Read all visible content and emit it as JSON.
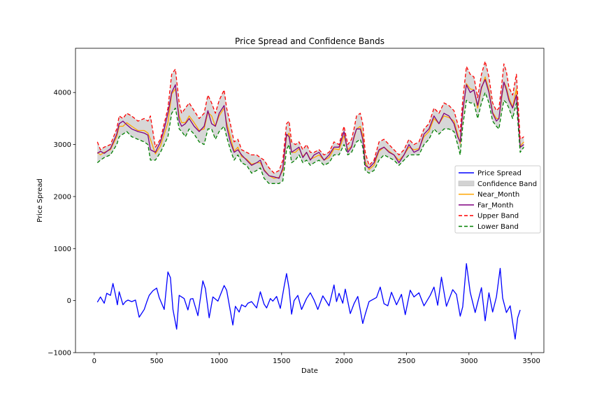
{
  "chart_data": {
    "type": "line",
    "title": "Price Spread and Confidence Bands",
    "xlabel": "Date",
    "ylabel": "Price Spread",
    "xlim": [
      -150,
      3600
    ],
    "ylim": [
      -1000,
      4850
    ],
    "x_ticks": [
      0,
      500,
      1000,
      1500,
      2000,
      2500,
      3000,
      3500
    ],
    "x_tick_labels": [
      "0",
      "500",
      "1000",
      "1500",
      "2000",
      "2500",
      "3000",
      "3500"
    ],
    "y_ticks": [
      -1000,
      0,
      1000,
      2000,
      3000,
      4000
    ],
    "y_tick_labels": [
      "−1000",
      "0",
      "1000",
      "2000",
      "3000",
      "4000"
    ],
    "grid": false,
    "legend_position": "center-right",
    "legend": [
      {
        "label": "Price Spread",
        "kind": "line",
        "color": "#0000ff"
      },
      {
        "label": "Confidence Band",
        "kind": "patch",
        "color": "#d3d3d3"
      },
      {
        "label": "Near_Month",
        "kind": "line",
        "color": "#ffa500"
      },
      {
        "label": "Far_Month",
        "kind": "line",
        "color": "#800080"
      },
      {
        "label": "Upper Band",
        "kind": "dashed",
        "color": "#ff0000"
      },
      {
        "label": "Lower Band",
        "kind": "dashed",
        "color": "#008000"
      }
    ],
    "series": [
      {
        "name": "Price Spread",
        "color": "#0000ff",
        "x": [
          25,
          50,
          80,
          100,
          130,
          150,
          170,
          185,
          200,
          230,
          250,
          270,
          300,
          330,
          360,
          400,
          420,
          440,
          470,
          500,
          520,
          560,
          590,
          610,
          630,
          660,
          680,
          720,
          750,
          770,
          790,
          830,
          870,
          890,
          920,
          950,
          990,
          1040,
          1060,
          1110,
          1130,
          1160,
          1180,
          1210,
          1230,
          1260,
          1300,
          1330,
          1360,
          1380,
          1410,
          1430,
          1460,
          1490,
          1520,
          1540,
          1560,
          1580,
          1600,
          1630,
          1660,
          1700,
          1730,
          1760,
          1790,
          1830,
          1880,
          1920,
          1940,
          1960,
          1990,
          2010,
          2050,
          2080,
          2110,
          2150,
          2170,
          2200,
          2260,
          2290,
          2320,
          2350,
          2380,
          2420,
          2460,
          2490,
          2530,
          2560,
          2600,
          2640,
          2690,
          2720,
          2750,
          2780,
          2820,
          2870,
          2900,
          2930,
          2950,
          2980,
          3010,
          3050,
          3080,
          3100,
          3130,
          3160,
          3190,
          3220,
          3250,
          3270,
          3300,
          3330,
          3370,
          3390,
          3410
        ],
        "y": [
          -30,
          70,
          -50,
          140,
          100,
          330,
          110,
          -80,
          170,
          -80,
          -20,
          10,
          -20,
          10,
          -320,
          -170,
          -30,
          100,
          190,
          240,
          60,
          -170,
          550,
          440,
          -170,
          -550,
          100,
          40,
          -180,
          30,
          40,
          -290,
          380,
          230,
          -330,
          70,
          -10,
          290,
          200,
          -470,
          -110,
          -220,
          -80,
          -120,
          -50,
          -20,
          -140,
          170,
          -70,
          -140,
          40,
          -10,
          80,
          -150,
          270,
          520,
          230,
          -260,
          0,
          100,
          -170,
          40,
          150,
          10,
          -170,
          90,
          -100,
          300,
          -20,
          140,
          -50,
          220,
          -250,
          -60,
          80,
          -440,
          -260,
          -20,
          60,
          260,
          -60,
          -100,
          160,
          -80,
          120,
          -270,
          200,
          70,
          150,
          -100,
          100,
          260,
          -90,
          450,
          -110,
          210,
          120,
          -300,
          -120,
          710,
          160,
          -230,
          60,
          250,
          -390,
          150,
          -220,
          70,
          620,
          50,
          -230,
          -100,
          -740,
          -330,
          -180
        ]
      },
      {
        "name": "Upper Band",
        "color": "#ff0000",
        "x": [
          25,
          50,
          80,
          130,
          180,
          200,
          230,
          260,
          300,
          350,
          400,
          430,
          450,
          490,
          530,
          560,
          590,
          620,
          650,
          680,
          700,
          730,
          760,
          800,
          840,
          880,
          910,
          940,
          970,
          1000,
          1040,
          1060,
          1090,
          1120,
          1150,
          1180,
          1220,
          1260,
          1300,
          1330,
          1360,
          1400,
          1440,
          1480,
          1510,
          1540,
          1560,
          1580,
          1610,
          1640,
          1670,
          1700,
          1730,
          1760,
          1800,
          1840,
          1880,
          1920,
          1960,
          2000,
          2030,
          2060,
          2080,
          2100,
          2130,
          2150,
          2170,
          2200,
          2240,
          2280,
          2320,
          2360,
          2400,
          2440,
          2480,
          2520,
          2560,
          2600,
          2640,
          2680,
          2720,
          2760,
          2800,
          2840,
          2880,
          2910,
          2930,
          2950,
          2980,
          3010,
          3040,
          3070,
          3100,
          3130,
          3160,
          3190,
          3220,
          3240,
          3260,
          3280,
          3300,
          3320,
          3350,
          3380,
          3410,
          3440
        ],
        "y": [
          3050,
          2900,
          2950,
          3000,
          3300,
          3550,
          3500,
          3600,
          3550,
          3450,
          3500,
          3450,
          3550,
          2950,
          3100,
          3400,
          3700,
          4350,
          4450,
          3800,
          3600,
          3700,
          3800,
          3650,
          3500,
          3600,
          3950,
          3800,
          3600,
          3850,
          4050,
          3700,
          3400,
          3050,
          3100,
          2900,
          2850,
          2800,
          2800,
          2750,
          2700,
          2550,
          2450,
          2500,
          2700,
          3400,
          3450,
          3050,
          3000,
          3050,
          2900,
          3000,
          2850,
          2850,
          2900,
          2800,
          2850,
          3050,
          3000,
          3350,
          3000,
          3100,
          3300,
          3550,
          3600,
          3400,
          2850,
          2600,
          2700,
          3050,
          3100,
          3000,
          2900,
          2800,
          2900,
          3100,
          3000,
          3050,
          3300,
          3400,
          3700,
          3600,
          3800,
          3750,
          3650,
          3400,
          3250,
          3850,
          4500,
          4350,
          4300,
          3900,
          4350,
          4600,
          4300,
          3800,
          3650,
          3700,
          4100,
          4550,
          4400,
          4100,
          3950,
          4350,
          3100,
          3150
        ]
      },
      {
        "name": "Lower Band",
        "color": "#008000",
        "x": [
          25,
          50,
          80,
          130,
          180,
          200,
          230,
          260,
          300,
          350,
          400,
          430,
          450,
          490,
          530,
          560,
          590,
          620,
          650,
          680,
          700,
          730,
          760,
          800,
          840,
          880,
          910,
          940,
          970,
          1000,
          1040,
          1060,
          1090,
          1120,
          1150,
          1180,
          1220,
          1260,
          1300,
          1330,
          1360,
          1400,
          1440,
          1480,
          1510,
          1540,
          1560,
          1580,
          1610,
          1640,
          1670,
          1700,
          1730,
          1760,
          1800,
          1840,
          1880,
          1920,
          1960,
          2000,
          2030,
          2060,
          2080,
          2100,
          2130,
          2150,
          2170,
          2200,
          2240,
          2280,
          2320,
          2360,
          2400,
          2440,
          2480,
          2520,
          2560,
          2600,
          2640,
          2680,
          2720,
          2760,
          2800,
          2840,
          2880,
          2910,
          2930,
          2950,
          2980,
          3010,
          3040,
          3070,
          3100,
          3130,
          3160,
          3190,
          3220,
          3240,
          3260,
          3280,
          3300,
          3320,
          3350,
          3380,
          3410,
          3440
        ],
        "y": [
          2650,
          2700,
          2750,
          2800,
          3000,
          3150,
          3200,
          3250,
          3150,
          3100,
          3050,
          3000,
          2700,
          2700,
          2850,
          3000,
          3150,
          3600,
          3700,
          3300,
          3250,
          3150,
          3300,
          3200,
          3050,
          3000,
          3300,
          3300,
          3100,
          3250,
          3350,
          3150,
          2900,
          2700,
          2800,
          2650,
          2600,
          2450,
          2500,
          2550,
          2350,
          2250,
          2250,
          2250,
          2300,
          2900,
          3000,
          2650,
          2700,
          2800,
          2650,
          2700,
          2600,
          2650,
          2700,
          2600,
          2650,
          2800,
          2800,
          3000,
          2800,
          2850,
          2950,
          3050,
          3100,
          2950,
          2500,
          2450,
          2500,
          2700,
          2800,
          2750,
          2700,
          2600,
          2700,
          2800,
          2800,
          2800,
          3000,
          3100,
          3300,
          3200,
          3300,
          3300,
          3250,
          3000,
          2800,
          3350,
          3850,
          3800,
          3800,
          3500,
          3800,
          4000,
          3800,
          3450,
          3350,
          3300,
          3600,
          3850,
          3800,
          3700,
          3500,
          3800,
          2850,
          2950
        ]
      },
      {
        "name": "Near_Month",
        "color": "#ffa500",
        "x": [
          25,
          50,
          80,
          130,
          180,
          200,
          230,
          260,
          300,
          350,
          400,
          430,
          450,
          490,
          530,
          560,
          590,
          620,
          650,
          680,
          700,
          730,
          760,
          800,
          840,
          880,
          910,
          940,
          970,
          1000,
          1040,
          1060,
          1090,
          1120,
          1150,
          1180,
          1220,
          1260,
          1300,
          1330,
          1360,
          1400,
          1440,
          1480,
          1510,
          1540,
          1560,
          1580,
          1610,
          1640,
          1670,
          1700,
          1730,
          1760,
          1800,
          1840,
          1880,
          1920,
          1960,
          2000,
          2030,
          2060,
          2080,
          2100,
          2130,
          2150,
          2170,
          2200,
          2240,
          2280,
          2320,
          2360,
          2400,
          2440,
          2480,
          2520,
          2560,
          2600,
          2640,
          2680,
          2720,
          2760,
          2800,
          2840,
          2880,
          2910,
          2930,
          2950,
          2980,
          3010,
          3040,
          3070,
          3100,
          3130,
          3160,
          3190,
          3220,
          3240,
          3260,
          3280,
          3300,
          3320,
          3350,
          3380,
          3410,
          3440
        ],
        "y": [
          2850,
          2800,
          2850,
          2900,
          3150,
          3350,
          3350,
          3420,
          3350,
          3270,
          3270,
          3220,
          3100,
          2820,
          2970,
          3200,
          3420,
          3970,
          4070,
          3550,
          3420,
          3420,
          3550,
          3420,
          3270,
          3300,
          3620,
          3550,
          3350,
          3550,
          3700,
          3420,
          3150,
          2870,
          2950,
          2770,
          2720,
          2620,
          2650,
          2650,
          2520,
          2400,
          2350,
          2370,
          2500,
          3150,
          3220,
          2850,
          2850,
          2920,
          2770,
          2850,
          2720,
          2750,
          2800,
          2700,
          2750,
          2920,
          2900,
          3170,
          2900,
          2970,
          3120,
          3300,
          3350,
          3170,
          2670,
          2520,
          2600,
          2870,
          2950,
          2870,
          2800,
          2700,
          2800,
          2950,
          2900,
          2920,
          3150,
          3250,
          3500,
          3400,
          3550,
          3520,
          3450,
          3200,
          3020,
          3600,
          4170,
          4070,
          4050,
          3700,
          4070,
          4300,
          4050,
          3620,
          3500,
          3500,
          3850,
          4200,
          4100,
          3900,
          3720,
          4070,
          2970,
          3050
        ]
      },
      {
        "name": "Far_Month",
        "color": "#800080",
        "x": [
          25,
          50,
          80,
          130,
          180,
          200,
          230,
          260,
          300,
          350,
          400,
          430,
          450,
          490,
          530,
          560,
          590,
          620,
          650,
          680,
          700,
          730,
          760,
          800,
          840,
          880,
          910,
          940,
          970,
          1000,
          1040,
          1060,
          1090,
          1120,
          1150,
          1180,
          1220,
          1260,
          1300,
          1330,
          1360,
          1400,
          1440,
          1480,
          1510,
          1540,
          1560,
          1580,
          1610,
          1640,
          1670,
          1700,
          1730,
          1760,
          1800,
          1840,
          1880,
          1920,
          1960,
          2000,
          2030,
          2060,
          2080,
          2100,
          2130,
          2150,
          2170,
          2200,
          2240,
          2280,
          2320,
          2360,
          2400,
          2440,
          2480,
          2520,
          2560,
          2600,
          2640,
          2680,
          2720,
          2760,
          2800,
          2840,
          2880,
          2910,
          2930,
          2950,
          2980,
          3010,
          3040,
          3070,
          3100,
          3130,
          3160,
          3190,
          3220,
          3240,
          3260,
          3280,
          3300,
          3320,
          3350,
          3380,
          3410,
          3440
        ],
        "y": [
          2830,
          2870,
          2830,
          2920,
          3200,
          3400,
          3450,
          3380,
          3300,
          3250,
          3220,
          3180,
          2900,
          2850,
          3050,
          3300,
          3600,
          4000,
          4150,
          3450,
          3350,
          3400,
          3500,
          3350,
          3250,
          3350,
          3650,
          3400,
          3350,
          3600,
          3750,
          3350,
          3050,
          2850,
          2900,
          2800,
          2700,
          2600,
          2650,
          2700,
          2500,
          2400,
          2380,
          2350,
          2550,
          3200,
          3150,
          2850,
          2900,
          2950,
          2750,
          2850,
          2700,
          2800,
          2850,
          2700,
          2800,
          2950,
          2950,
          3250,
          2850,
          2950,
          3150,
          3300,
          3300,
          3100,
          2600,
          2550,
          2650,
          2900,
          2950,
          2850,
          2800,
          2650,
          2800,
          3000,
          2850,
          2900,
          3200,
          3300,
          3550,
          3400,
          3600,
          3550,
          3400,
          3150,
          3050,
          3650,
          4150,
          4000,
          4050,
          3750,
          4100,
          4250,
          4000,
          3600,
          3450,
          3500,
          3900,
          4200,
          4050,
          3850,
          3700,
          3950,
          2950,
          3000
        ]
      }
    ]
  }
}
